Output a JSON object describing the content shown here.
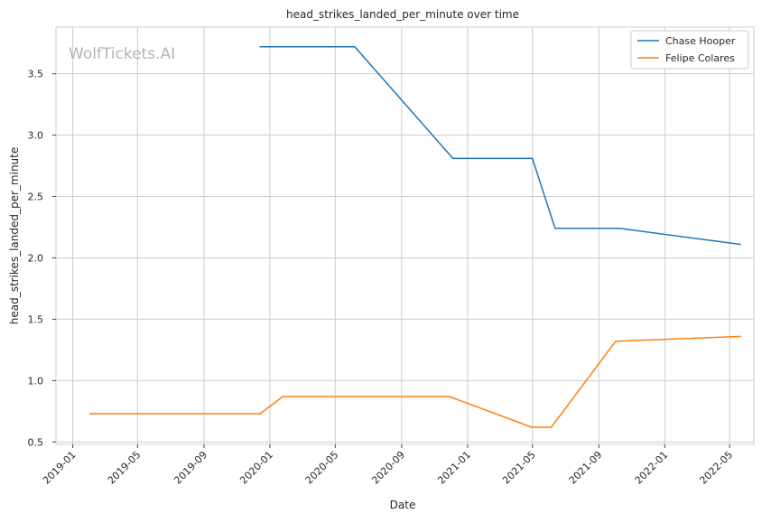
{
  "chart_data": {
    "type": "line",
    "title": "head_strikes_landed_per_minute over time",
    "xlabel": "Date",
    "ylabel": "head_strikes_landed_per_minute",
    "watermark": "WolfTickets.AI",
    "x_ticks": [
      "2019-01",
      "2019-05",
      "2019-09",
      "2020-01",
      "2020-05",
      "2020-09",
      "2021-01",
      "2021-05",
      "2021-09",
      "2022-01",
      "2022-05"
    ],
    "y_ticks": [
      "0.5",
      "1.0",
      "1.5",
      "2.0",
      "2.5",
      "3.0",
      "3.5"
    ],
    "xlim": [
      "2018-12-01",
      "2022-06-15"
    ],
    "ylim": [
      0.48,
      3.88
    ],
    "grid": true,
    "legend_position": "top-right",
    "series": [
      {
        "name": "Chase Hooper",
        "color": "#1f77b4",
        "points": [
          [
            "2019-12-14",
            3.72
          ],
          [
            "2020-06-06",
            3.72
          ],
          [
            "2020-12-05",
            2.81
          ],
          [
            "2021-05-01",
            2.81
          ],
          [
            "2021-06-12",
            2.24
          ],
          [
            "2021-10-09",
            2.24
          ],
          [
            "2022-05-21",
            2.11
          ]
        ]
      },
      {
        "name": "Felipe Colares",
        "color": "#ff7f0e",
        "points": [
          [
            "2019-02-02",
            0.73
          ],
          [
            "2019-12-14",
            0.73
          ],
          [
            "2020-01-25",
            0.87
          ],
          [
            "2020-11-28",
            0.87
          ],
          [
            "2021-04-30",
            0.62
          ],
          [
            "2021-06-05",
            0.62
          ],
          [
            "2021-10-02",
            1.32
          ],
          [
            "2022-05-21",
            1.36
          ]
        ]
      }
    ]
  }
}
